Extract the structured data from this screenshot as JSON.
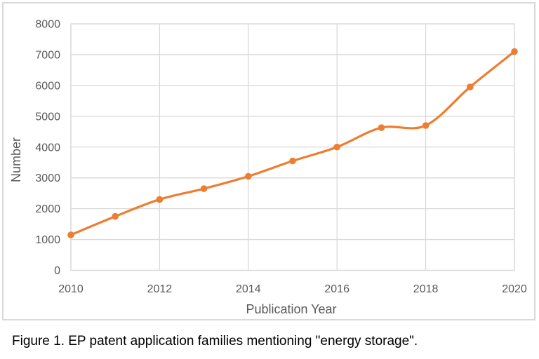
{
  "caption": "Figure 1. EP patent application families mentioning \"energy storage\".",
  "colors": {
    "line": "#ED7D31",
    "marker": "#ED7D31",
    "grid": "#D9D9D9",
    "plot_border": "#D9D9D9",
    "frame_border": "#D9D9D9",
    "axis_text": "#595959",
    "caption_text": "#000000",
    "background": "#FFFFFF"
  },
  "chart_data": {
    "type": "line",
    "title": "",
    "xlabel": "Publication Year",
    "ylabel": "Number",
    "x": [
      2010,
      2011,
      2012,
      2013,
      2014,
      2015,
      2016,
      2017,
      2018,
      2019,
      2020
    ],
    "values": [
      1150,
      1750,
      2300,
      2650,
      3050,
      3550,
      4000,
      4630,
      4700,
      5950,
      7100
    ],
    "xlim": [
      2010,
      2020
    ],
    "ylim": [
      0,
      8000
    ],
    "x_ticks": [
      2010,
      2012,
      2014,
      2016,
      2018,
      2020
    ],
    "y_ticks": [
      0,
      1000,
      2000,
      3000,
      4000,
      5000,
      6000,
      7000,
      8000
    ],
    "grid": true,
    "legend": "none",
    "line_style": "smooth",
    "marker": "circle"
  }
}
